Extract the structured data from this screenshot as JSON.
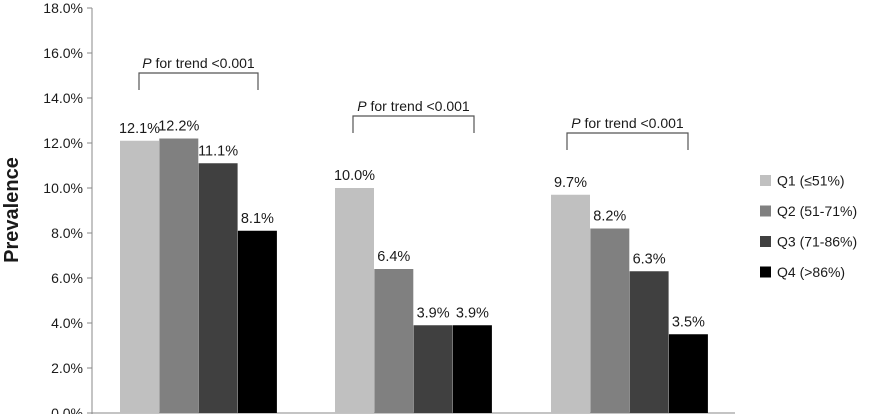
{
  "chart_data": {
    "type": "bar",
    "title": "",
    "xlabel": "",
    "ylabel": "Prevalence",
    "ylim": [
      0,
      18
    ],
    "ytick_step": 2,
    "ytick_labels": [
      "0.0%",
      "2.0%",
      "4.0%",
      "6.0%",
      "8.0%",
      "10.0%",
      "12.0%",
      "14.0%",
      "16.0%",
      "18.0%"
    ],
    "categories": [
      "",
      "",
      ""
    ],
    "series": [
      {
        "name": "Q1 (≤51%)",
        "color": "#c0c0c0",
        "values": [
          12.1,
          10.0,
          9.7
        ],
        "labels": [
          "12.1%",
          "10.0%",
          "9.7%"
        ]
      },
      {
        "name": "Q2 (51-71%)",
        "color": "#808080",
        "values": [
          12.2,
          6.4,
          8.2
        ],
        "labels": [
          "12.2%",
          "6.4%",
          "8.2%"
        ]
      },
      {
        "name": "Q3 (71-86%)",
        "color": "#404040",
        "values": [
          11.1,
          3.9,
          6.3
        ],
        "labels": [
          "11.1%",
          "3.9%",
          "6.3%"
        ]
      },
      {
        "name": "Q4 (>86%)",
        "color": "#000000",
        "values": [
          8.1,
          3.9,
          3.5
        ],
        "labels": [
          "8.1%",
          "3.9%",
          "3.5%"
        ]
      }
    ],
    "annotations": [
      {
        "group": 0,
        "italic": "P",
        "text": " for trend <0.001"
      },
      {
        "group": 1,
        "italic": "P",
        "text": " for trend <0.001"
      },
      {
        "group": 2,
        "italic": "P",
        "text": " for trend <0.001"
      }
    ],
    "legend_position": "right",
    "grid": false
  }
}
